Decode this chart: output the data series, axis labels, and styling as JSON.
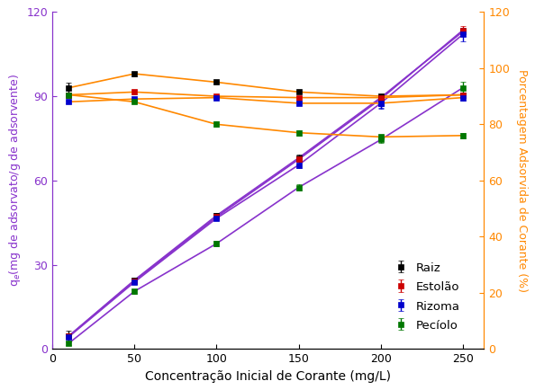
{
  "x": [
    10,
    50,
    100,
    150,
    200,
    250
  ],
  "qe_raiz": [
    4.6,
    24.5,
    47.5,
    68.0,
    89.5,
    113.0
  ],
  "qe_estolon": [
    4.5,
    24.2,
    47.0,
    67.5,
    89.0,
    113.5
  ],
  "qe_rizoma": [
    4.3,
    23.8,
    46.5,
    65.5,
    87.5,
    112.0
  ],
  "qe_peciolo": [
    2.0,
    20.5,
    37.5,
    57.5,
    74.5,
    93.0
  ],
  "pct_raiz": [
    93.0,
    98.0,
    95.0,
    91.5,
    90.0,
    90.5
  ],
  "pct_estolon": [
    90.5,
    91.5,
    90.0,
    89.5,
    89.5,
    90.5
  ],
  "pct_rizoma": [
    88.0,
    89.0,
    89.5,
    87.5,
    87.5,
    89.5
  ],
  "pct_peciolo": [
    90.5,
    88.0,
    80.0,
    77.0,
    75.5,
    76.0
  ],
  "err_qe_raiz": [
    1.8,
    0.8,
    0.8,
    1.2,
    1.0,
    1.5
  ],
  "err_qe_estolon": [
    0.5,
    0.8,
    0.8,
    0.8,
    1.0,
    1.5
  ],
  "err_qe_rizoma": [
    0.5,
    0.8,
    0.8,
    1.0,
    2.0,
    2.5
  ],
  "err_qe_peciolo": [
    0.5,
    0.8,
    1.0,
    1.0,
    1.0,
    2.0
  ],
  "err_pct_raiz": [
    1.8,
    0.8,
    0.5,
    0.5,
    0.5,
    0.5
  ],
  "err_pct_estolon": [
    0.5,
    0.8,
    0.5,
    0.5,
    0.5,
    0.5
  ],
  "err_pct_rizoma": [
    0.5,
    0.5,
    0.5,
    0.5,
    1.5,
    1.0
  ],
  "err_pct_peciolo": [
    0.5,
    0.5,
    1.0,
    1.0,
    0.8,
    1.0
  ],
  "colors": {
    "raiz": "#000000",
    "estolon": "#cc0000",
    "rizoma": "#0000cc",
    "peciolo": "#007700"
  },
  "line_color_qe": "#8833cc",
  "line_color_pct": "#ff8800",
  "xlabel": "Concentração Inicial de Corante (mg/L)",
  "ylabel_left": "q$_e$(mg de adsorvato/g de adsorvente)",
  "ylabel_right": "Porcentagem Adsorvida de Corante (%)",
  "ylim_left": [
    0,
    120
  ],
  "ylim_right": [
    0,
    120
  ],
  "xlim": [
    0,
    263
  ],
  "yticks_left": [
    0,
    30,
    60,
    90,
    120
  ],
  "yticks_right": [
    0,
    20,
    40,
    60,
    80,
    100,
    120
  ],
  "xticks": [
    0,
    50,
    100,
    150,
    200,
    250
  ],
  "legend_labels": [
    "Raiz",
    "Estolão",
    "Rizoma",
    "Pecíolo"
  ]
}
